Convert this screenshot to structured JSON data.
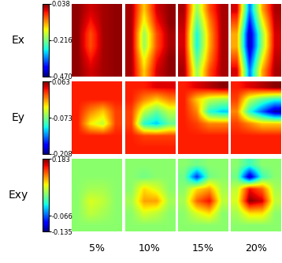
{
  "chart_data": {
    "type": "heatmap_grid",
    "columns": [
      "5%",
      "10%",
      "15%",
      "20%"
    ],
    "rows": [
      {
        "label": "Ex",
        "color_range": [
          -0.47,
          0.038
        ],
        "color_ticks": [
          {
            "value": 0.038,
            "label": "0.038"
          },
          {
            "value": -0.216,
            "label": "-0.216"
          },
          {
            "value": -0.47,
            "label": "-0.470"
          }
        ],
        "cells": [
          [
            [
              0.03,
              0.0,
              0.02,
              0.03
            ],
            [
              0.03,
              -0.02,
              0.02,
              0.03
            ],
            [
              0.03,
              -0.05,
              0.02,
              0.03
            ],
            [
              0.03,
              -0.05,
              0.02,
              0.03
            ],
            [
              0.03,
              -0.02,
              0.02,
              0.03
            ],
            [
              0.03,
              0.0,
              0.02,
              0.03
            ]
          ],
          [
            [
              0.02,
              -0.12,
              0.0,
              0.03
            ],
            [
              0.02,
              -0.15,
              -0.02,
              0.03
            ],
            [
              0.02,
              -0.2,
              -0.05,
              0.02
            ],
            [
              0.02,
              -0.2,
              -0.05,
              0.02
            ],
            [
              0.02,
              -0.15,
              -0.02,
              0.03
            ],
            [
              0.02,
              -0.12,
              0.0,
              0.03
            ]
          ],
          [
            [
              0.02,
              -0.2,
              -0.05,
              0.02
            ],
            [
              0.01,
              -0.24,
              -0.08,
              0.02
            ],
            [
              0.0,
              -0.28,
              -0.1,
              0.02
            ],
            [
              0.0,
              -0.28,
              -0.1,
              0.02
            ],
            [
              0.01,
              -0.24,
              -0.08,
              0.02
            ],
            [
              0.02,
              -0.2,
              -0.05,
              0.02
            ]
          ],
          [
            [
              0.0,
              -0.35,
              -0.1,
              0.02
            ],
            [
              -0.05,
              -0.4,
              -0.15,
              0.01
            ],
            [
              -0.1,
              -0.45,
              -0.2,
              0.0
            ],
            [
              -0.1,
              -0.45,
              -0.2,
              0.0
            ],
            [
              -0.05,
              -0.4,
              -0.15,
              0.01
            ],
            [
              0.0,
              -0.35,
              -0.1,
              0.02
            ]
          ]
        ]
      },
      {
        "label": "Ey",
        "color_range": [
          -0.208,
          0.063
        ],
        "color_ticks": [
          0.063,
          -0.073,
          -0.208
        ],
        "cells": [
          [
            [
              0.03,
              0.03,
              0.03,
              0.03
            ],
            [
              0.03,
              0.03,
              0.03,
              0.03
            ],
            [
              0.03,
              0.0,
              -0.02,
              0.02
            ],
            [
              0.03,
              -0.03,
              -0.05,
              0.02
            ],
            [
              0.03,
              0.03,
              0.03,
              0.03
            ],
            [
              0.03,
              0.03,
              0.03,
              0.03
            ]
          ],
          [
            [
              0.03,
              0.03,
              0.04,
              0.04
            ],
            [
              0.03,
              0.0,
              -0.02,
              0.0
            ],
            [
              0.02,
              -0.05,
              -0.08,
              -0.05
            ],
            [
              0.02,
              -0.1,
              -0.12,
              -0.08
            ],
            [
              0.03,
              0.02,
              0.02,
              0.02
            ],
            [
              0.03,
              0.03,
              0.03,
              0.03
            ]
          ],
          [
            [
              0.03,
              0.04,
              0.05,
              0.06
            ],
            [
              0.03,
              -0.02,
              -0.05,
              -0.06
            ],
            [
              0.03,
              0.0,
              -0.1,
              -0.12
            ],
            [
              0.03,
              0.02,
              0.0,
              0.0
            ],
            [
              0.03,
              0.03,
              0.03,
              0.03
            ],
            [
              0.03,
              0.03,
              0.03,
              0.03
            ]
          ],
          [
            [
              0.03,
              0.04,
              0.05,
              0.06
            ],
            [
              0.02,
              -0.05,
              -0.08,
              -0.1
            ],
            [
              0.0,
              -0.1,
              -0.15,
              -0.2
            ],
            [
              0.02,
              0.0,
              -0.02,
              -0.02
            ],
            [
              0.03,
              0.03,
              0.03,
              0.03
            ],
            [
              0.03,
              0.03,
              0.03,
              0.03
            ]
          ]
        ]
      },
      {
        "label": "Exy",
        "color_range": [
          -0.135,
          0.183
        ],
        "color_ticks": [
          0.183,
          -0.066,
          -0.135
        ],
        "cells": [
          [
            [
              0.03,
              0.03,
              0.03,
              0.03
            ],
            [
              0.03,
              0.03,
              0.03,
              0.03
            ],
            [
              0.03,
              0.04,
              0.04,
              0.03
            ],
            [
              0.03,
              0.06,
              0.05,
              0.03
            ],
            [
              0.03,
              0.05,
              0.04,
              0.03
            ],
            [
              0.03,
              0.03,
              0.03,
              0.03
            ]
          ],
          [
            [
              0.03,
              0.03,
              0.03,
              0.03
            ],
            [
              0.03,
              0.02,
              0.03,
              0.03
            ],
            [
              0.03,
              0.08,
              0.06,
              0.03
            ],
            [
              0.04,
              0.1,
              0.1,
              0.04
            ],
            [
              0.03,
              0.06,
              0.05,
              0.03
            ],
            [
              0.03,
              0.03,
              0.03,
              0.03
            ]
          ],
          [
            [
              0.03,
              0.02,
              0.03,
              0.03
            ],
            [
              0.02,
              -0.08,
              0.02,
              0.03
            ],
            [
              0.03,
              0.08,
              0.1,
              0.04
            ],
            [
              0.04,
              0.12,
              0.15,
              0.05
            ],
            [
              0.03,
              0.06,
              0.08,
              0.03
            ],
            [
              0.03,
              0.03,
              0.03,
              0.03
            ]
          ],
          [
            [
              0.03,
              0.0,
              0.03,
              0.03
            ],
            [
              0.02,
              -0.12,
              0.0,
              0.03
            ],
            [
              0.05,
              0.15,
              0.12,
              0.04
            ],
            [
              0.06,
              0.18,
              0.16,
              0.05
            ],
            [
              0.04,
              0.08,
              0.08,
              0.03
            ],
            [
              0.03,
              0.03,
              0.03,
              0.03
            ]
          ]
        ]
      }
    ]
  }
}
